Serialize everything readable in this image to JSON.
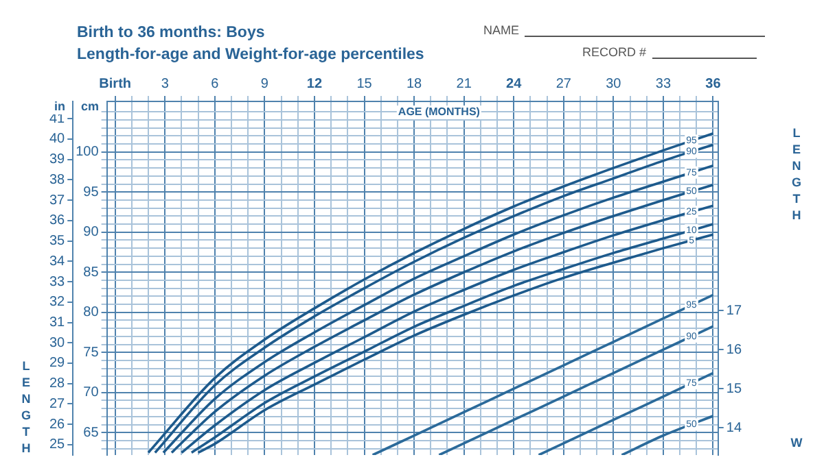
{
  "chart_data": {
    "type": "line",
    "title": "Birth to 36 months: Boys",
    "subtitle": "Length-for-age and Weight-for-age percentiles",
    "annotations": [
      "in",
      "cm",
      "NAME",
      "RECORD #"
    ],
    "xlabel": "AGE (MONTHS)",
    "ylabel": "LENGTH",
    "y3label": "W",
    "xlim": [
      -0.5,
      36.3
    ],
    "xticks": [
      {
        "value": 0,
        "label": "Birth"
      },
      {
        "value": 1,
        "label": null
      },
      {
        "value": 2,
        "label": null
      },
      3,
      {
        "value": 4,
        "label": null
      },
      {
        "value": 5,
        "label": null
      },
      6,
      {
        "value": 7,
        "label": null
      },
      {
        "value": 8,
        "label": null
      },
      9,
      {
        "value": 10,
        "label": null
      },
      {
        "value": 11,
        "label": null
      },
      12,
      {
        "value": 13,
        "label": null
      },
      {
        "value": 14,
        "label": null
      },
      15,
      {
        "value": 16,
        "label": null
      },
      {
        "value": 17,
        "label": null
      },
      18,
      {
        "value": 19,
        "label": null
      },
      {
        "value": 20,
        "label": null
      },
      21,
      {
        "value": 22,
        "label": null
      },
      {
        "value": 23,
        "label": null
      },
      24,
      {
        "value": 25,
        "label": null
      },
      {
        "value": 26,
        "label": null
      },
      27,
      {
        "value": 28,
        "label": null
      },
      {
        "value": 29,
        "label": null
      },
      30,
      {
        "value": 31,
        "label": null
      },
      {
        "value": 32,
        "label": null
      },
      33,
      {
        "value": 34,
        "label": null
      },
      {
        "value": 35,
        "label": null
      },
      36
    ],
    "ylim": [
      62.2,
      106.3
    ],
    "yticks": [
      {
        "value": 63,
        "label": null
      },
      {
        "value": 64,
        "label": null
      },
      65,
      {
        "value": 66,
        "label": null
      },
      {
        "value": 67,
        "label": null
      },
      {
        "value": 68,
        "label": null
      },
      {
        "value": 69,
        "label": null
      },
      70,
      {
        "value": 71,
        "label": null
      },
      {
        "value": 72,
        "label": null
      },
      {
        "value": 73,
        "label": null
      },
      {
        "value": 74,
        "label": null
      },
      75,
      {
        "value": 76,
        "label": null
      },
      {
        "value": 77,
        "label": null
      },
      {
        "value": 78,
        "label": null
      },
      {
        "value": 79,
        "label": null
      },
      80,
      {
        "value": 81,
        "label": null
      },
      {
        "value": 82,
        "label": null
      },
      {
        "value": 83,
        "label": null
      },
      {
        "value": 84,
        "label": null
      },
      85,
      {
        "value": 86,
        "label": null
      },
      {
        "value": 87,
        "label": null
      },
      {
        "value": 88,
        "label": null
      },
      {
        "value": 89,
        "label": null
      },
      90,
      {
        "value": 91,
        "label": null
      },
      {
        "value": 92,
        "label": null
      },
      {
        "value": 93,
        "label": null
      },
      {
        "value": 94,
        "label": null
      },
      95,
      {
        "value": 96,
        "label": null
      },
      {
        "value": 97,
        "label": null
      },
      {
        "value": 98,
        "label": null
      },
      {
        "value": 99,
        "label": null
      },
      100,
      {
        "value": 101,
        "label": null
      },
      {
        "value": 102,
        "label": null
      },
      {
        "value": 103,
        "label": null
      },
      {
        "value": 104,
        "label": null
      },
      {
        "value": 105,
        "label": null
      }
    ],
    "y2lim": [
      24.49,
      41.85
    ],
    "y2ticks": [
      25,
      26,
      27,
      28,
      29,
      30,
      31,
      32,
      33,
      34,
      35,
      36,
      37,
      38,
      39,
      40,
      41
    ],
    "y3lim": [
      13.3,
      22.36
    ],
    "y3ticks": [
      14,
      15,
      16,
      17
    ],
    "grid": true,
    "legend": false,
    "marker": "none",
    "series": [
      {
        "name": "95",
        "color": "#1d5a8c",
        "x": [
          2,
          6,
          9,
          12,
          15,
          18,
          21,
          24,
          27,
          30,
          33,
          36
        ],
        "values": [
          62.5,
          71.8,
          76.6,
          80.5,
          84.1,
          87.4,
          90.4,
          93.2,
          95.7,
          98.0,
          100.2,
          102.3
        ]
      },
      {
        "name": "90",
        "color": "#1d5a8c",
        "x": [
          2.4,
          6,
          9,
          12,
          15,
          18,
          21,
          24,
          27,
          30,
          33,
          36
        ],
        "values": [
          62.5,
          70.9,
          75.6,
          79.5,
          83.0,
          86.3,
          89.3,
          92.0,
          94.5,
          96.7,
          98.9,
          100.9
        ]
      },
      {
        "name": "75",
        "color": "#1d5a8c",
        "x": [
          2.9,
          6,
          9,
          12,
          15,
          18,
          21,
          24,
          27,
          30,
          33,
          36
        ],
        "values": [
          62.5,
          69.2,
          73.8,
          77.5,
          80.9,
          84.2,
          87.0,
          89.7,
          92.1,
          94.3,
          96.3,
          98.3
        ]
      },
      {
        "name": "50",
        "color": "#1d5a8c",
        "x": [
          3.4,
          6,
          9,
          12,
          15,
          18,
          21,
          24,
          27,
          30,
          33,
          36
        ],
        "values": [
          62.5,
          67.6,
          72.1,
          75.7,
          79.0,
          82.2,
          85.0,
          87.6,
          89.9,
          92.0,
          94.0,
          95.9
        ]
      },
      {
        "name": "25",
        "color": "#1d5a8c",
        "x": [
          4.0,
          6,
          9,
          12,
          15,
          18,
          21,
          24,
          27,
          30,
          33,
          36
        ],
        "values": [
          62.5,
          65.9,
          70.3,
          73.7,
          76.9,
          80.1,
          82.8,
          85.3,
          87.5,
          89.6,
          91.5,
          93.3
        ]
      },
      {
        "name": "10",
        "color": "#1d5a8c",
        "x": [
          4.6,
          6,
          9,
          12,
          15,
          18,
          21,
          24,
          27,
          30,
          33,
          36
        ],
        "values": [
          62.5,
          64.4,
          68.7,
          72.0,
          75.1,
          78.2,
          80.8,
          83.3,
          85.4,
          87.4,
          89.2,
          91.0
        ]
      },
      {
        "name": "5",
        "color": "#1d5a8c",
        "x": [
          5.0,
          6,
          9,
          12,
          15,
          18,
          21,
          24,
          27,
          30,
          33,
          36
        ],
        "values": [
          62.5,
          63.6,
          67.8,
          71.0,
          74.1,
          77.1,
          79.7,
          82.1,
          84.3,
          86.2,
          88.0,
          89.7
        ]
      },
      {
        "name": "95",
        "color": "#2b6a9a",
        "axis": "y3",
        "x": [
          15.5,
          18,
          21,
          24,
          27,
          30,
          33,
          36
        ],
        "values": [
          13.3,
          13.8,
          14.4,
          15.0,
          15.6,
          16.2,
          16.8,
          17.4
        ]
      },
      {
        "name": "90",
        "color": "#2b6a9a",
        "axis": "y3",
        "x": [
          19.5,
          21,
          24,
          27,
          30,
          33,
          36
        ],
        "values": [
          13.3,
          13.6,
          14.2,
          14.8,
          15.4,
          16.0,
          16.6
        ]
      },
      {
        "name": "75",
        "color": "#2b6a9a",
        "axis": "y3",
        "x": [
          25.5,
          27,
          30,
          33,
          36
        ],
        "values": [
          13.3,
          13.6,
          14.2,
          14.8,
          15.4
        ]
      },
      {
        "name": "50",
        "color": "#2b6a9a",
        "axis": "y3",
        "x": [
          30.5,
          33,
          36
        ],
        "values": [
          13.3,
          13.8,
          14.3
        ]
      }
    ]
  }
}
